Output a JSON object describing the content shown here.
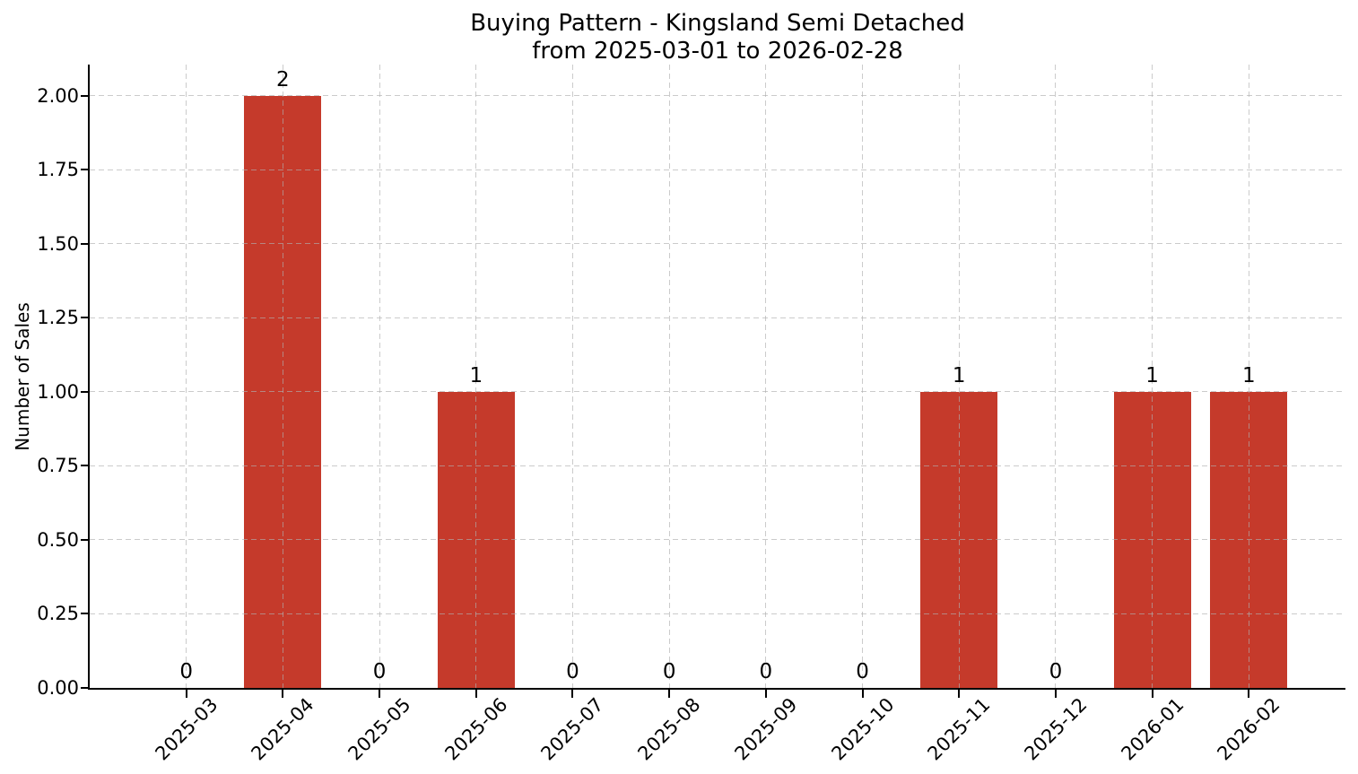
{
  "figure": {
    "background": "#ffffff"
  },
  "chart_data": {
    "type": "bar",
    "title": "Buying Pattern - Kingsland Semi Detached",
    "subtitle": "from 2025-03-01 to 2026-02-28",
    "xlabel": "",
    "ylabel": "Number of Sales",
    "categories": [
      "2025-03",
      "2025-04",
      "2025-05",
      "2025-06",
      "2025-07",
      "2025-08",
      "2025-09",
      "2025-10",
      "2025-11",
      "2025-12",
      "2026-01",
      "2026-02"
    ],
    "values": [
      0,
      2,
      0,
      1,
      0,
      0,
      0,
      0,
      1,
      0,
      1,
      1
    ],
    "bar_value_labels": [
      "0",
      "2",
      "0",
      "1",
      "0",
      "0",
      "0",
      "0",
      "1",
      "0",
      "1",
      "1"
    ],
    "yticks": [
      0,
      0.25,
      0.5,
      0.75,
      1,
      1.25,
      1.5,
      1.75,
      2
    ],
    "ytick_labels": [
      "0.00",
      "0.25",
      "0.50",
      "0.75",
      "1.00",
      "1.25",
      "1.50",
      "1.75",
      "2.00"
    ],
    "ylim": [
      0,
      2.106
    ],
    "bar_width_fraction": 0.8,
    "x_tick_rotation_deg": 45,
    "grid": true,
    "grid_style": "dashed",
    "legend_position": "none",
    "bar_color": "#c53a2b",
    "grid_color": "#afafaf",
    "axis_color": "#000000",
    "text_color": "#000000"
  }
}
